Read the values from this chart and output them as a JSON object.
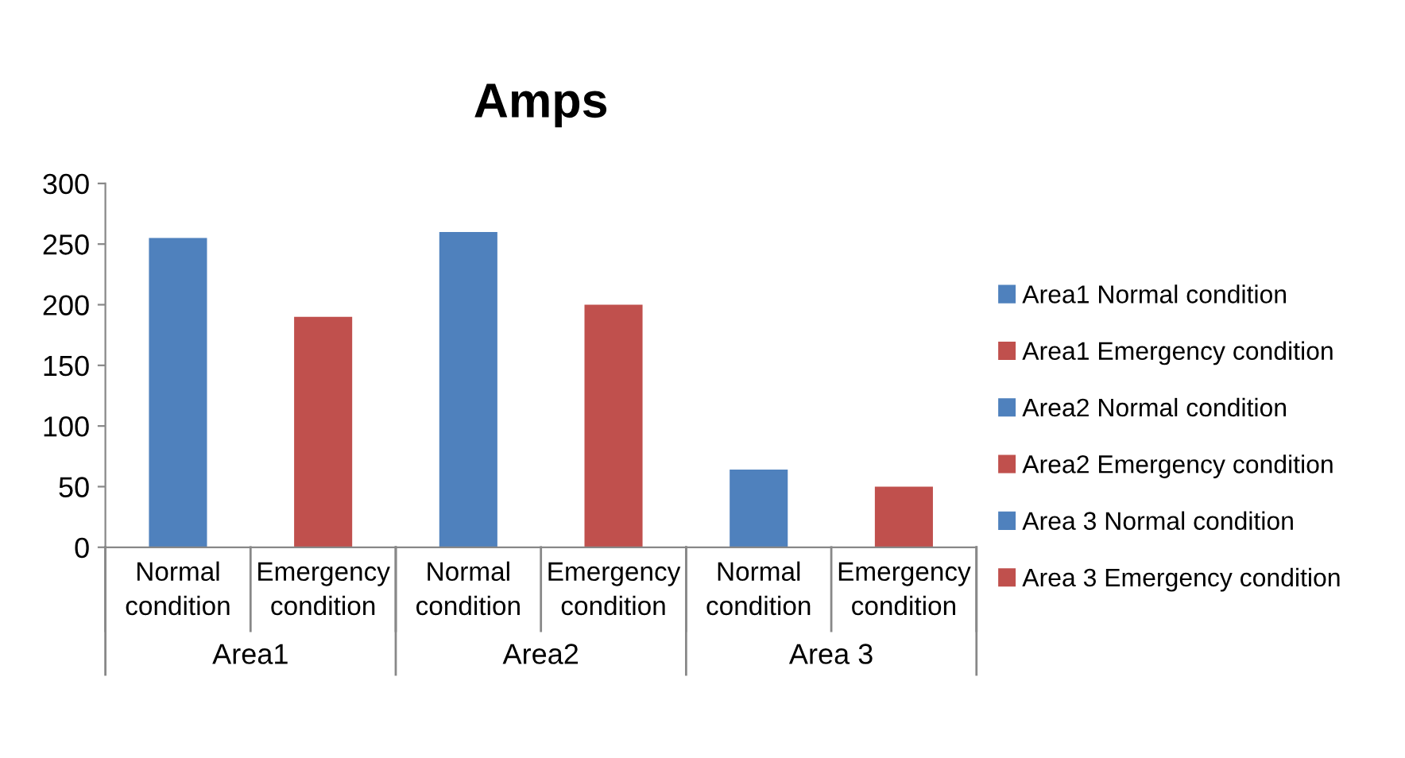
{
  "chart_data": {
    "type": "bar",
    "title": "Amps",
    "categories": [
      "Normal condition",
      "Emergency condition",
      "Normal condition",
      "Emergency condition",
      "Normal condition",
      "Emergency condition"
    ],
    "series": [
      {
        "name": "Area1 Normal condition",
        "color": "#4f81bd",
        "values": [
          255,
          null,
          null,
          null,
          null,
          null
        ]
      },
      {
        "name": "Area1 Emergency condition",
        "color": "#c0504d",
        "values": [
          null,
          190,
          null,
          null,
          null,
          null
        ]
      },
      {
        "name": "Area2 Normal condition",
        "color": "#4f81bd",
        "values": [
          null,
          null,
          260,
          null,
          null,
          null
        ]
      },
      {
        "name": "Area2 Emergency condition",
        "color": "#c0504d",
        "values": [
          null,
          null,
          null,
          200,
          null,
          null
        ]
      },
      {
        "name": "Area 3 Normal condition",
        "color": "#4f81bd",
        "values": [
          null,
          null,
          null,
          null,
          64,
          null
        ]
      },
      {
        "name": "Area 3 Emergency condition",
        "color": "#c0504d",
        "values": [
          null,
          null,
          null,
          null,
          null,
          50
        ]
      }
    ],
    "annotations": [
      "Area1",
      "Area2",
      "Area 3"
    ],
    "ylim": [
      0,
      300
    ],
    "yticks": [
      0,
      50,
      100,
      150,
      200,
      250,
      300
    ],
    "grid": false,
    "legend": "right"
  }
}
